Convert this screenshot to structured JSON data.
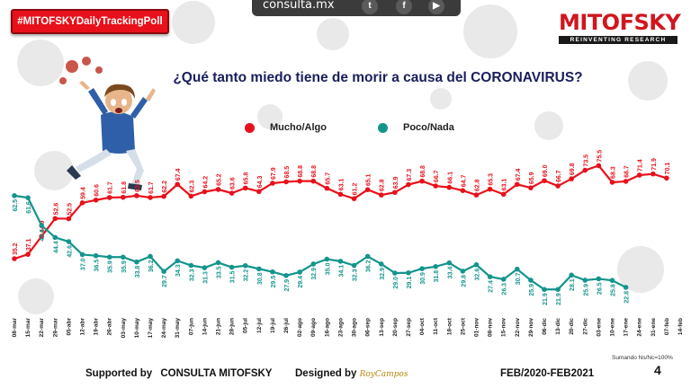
{
  "header": {
    "poll_tag": "#MITOFSKYDailyTrackingPoll",
    "site": "consulta.mx",
    "social": [
      "twitter-icon",
      "facebook-icon",
      "youtube-icon"
    ]
  },
  "logo": {
    "name": "MITOFSKY",
    "tagline": "REINVENTING RESEARCH"
  },
  "footer": {
    "supported_prefix": "Supported by",
    "supporter": "CONSULTA  MITOFSKY",
    "designed_by": "Designed by",
    "signature": "RoyCampos",
    "date_range": "FEB/2020-FEB2021",
    "note": "Sumando Ns/Nc=100%",
    "page": "4"
  },
  "colors": {
    "series1": "#e8101a",
    "series2": "#13958c",
    "title": "#1a1e5c"
  },
  "chart_data": {
    "type": "line",
    "title": "¿Qué tanto miedo tiene de morir a causa del CORONAVIRUS?",
    "xlabel": "",
    "ylabel": "",
    "ylim": [
      15,
      85
    ],
    "grid": false,
    "legend_position": "top-center",
    "categories": [
      "08-mar",
      "15-mar",
      "22-mar",
      "29-mar",
      "05-abr",
      "12-abr",
      "19-abr",
      "26-abr",
      "03-may",
      "10-may",
      "17-may",
      "24-may",
      "31-may",
      "07-jun",
      "14-jun",
      "21-jun",
      "28-jun",
      "05-jul",
      "12-jul",
      "19-jul",
      "26-jul",
      "02-ago",
      "09-ago",
      "16-ago",
      "23-ago",
      "30-ago",
      "06-sep",
      "13-sep",
      "20-sep",
      "27-sep",
      "04-oct",
      "11-oct",
      "18-oct",
      "25-oct",
      "01-nov",
      "08-nov",
      "15-nov",
      "22-nov",
      "29-nov",
      "06-dic",
      "13-dic",
      "20-dic",
      "27-dic",
      "03-ene",
      "10-ene",
      "17-ene",
      "24-ene",
      "31-ene",
      "07-feb",
      "14-feb"
    ],
    "series": [
      {
        "name": "Mucho/Algo",
        "color": "#e8101a",
        "points": [
          {
            "x": 0,
            "y": 35.2
          },
          {
            "x": 1,
            "y": 37.1
          },
          {
            "x": 2,
            "y": 44.9
          },
          {
            "x": 3,
            "y": 52.6
          },
          {
            "x": 4,
            "y": 52.5
          },
          {
            "x": 5,
            "y": 59.4
          },
          {
            "x": 6,
            "y": 60.6
          },
          {
            "x": 7,
            "y": 61.7
          },
          {
            "x": 8,
            "y": 61.8
          },
          {
            "x": 9,
            "y": 62.5
          },
          {
            "x": 10,
            "y": 61.7
          },
          {
            "x": 11,
            "y": 62.2
          },
          {
            "x": 12,
            "y": 67.4
          },
          {
            "x": 13,
            "y": 62.3
          },
          {
            "x": 14,
            "y": 64.2
          },
          {
            "x": 15,
            "y": 65.2
          },
          {
            "x": 16,
            "y": 63.6
          },
          {
            "x": 17,
            "y": 65.8
          },
          {
            "x": 18,
            "y": 64.3
          },
          {
            "x": 19,
            "y": 67.9
          },
          {
            "x": 20,
            "y": 68.5
          },
          {
            "x": 21,
            "y": 68.8
          },
          {
            "x": 22,
            "y": 68.8
          },
          {
            "x": 23,
            "y": 65.7
          },
          {
            "x": 24,
            "y": 63.1
          },
          {
            "x": 25,
            "y": 61.2
          },
          {
            "x": 26,
            "y": 65.1
          },
          {
            "x": 27,
            "y": 62.8
          },
          {
            "x": 28,
            "y": 63.9
          },
          {
            "x": 29,
            "y": 67.3
          },
          {
            "x": 30,
            "y": 68.8
          },
          {
            "x": 31,
            "y": 66.7
          },
          {
            "x": 32,
            "y": 66.1
          },
          {
            "x": 33,
            "y": 64.7
          },
          {
            "x": 34,
            "y": 62.8
          },
          {
            "x": 35,
            "y": 65.3
          },
          {
            "x": 36,
            "y": 63.1
          },
          {
            "x": 37,
            "y": 67.4
          },
          {
            "x": 38,
            "y": 65.9
          },
          {
            "x": 39,
            "y": 69.0
          },
          {
            "x": 40,
            "y": 66.7
          },
          {
            "x": 41,
            "y": 69.8
          },
          {
            "x": 42,
            "y": 73.5
          },
          {
            "x": 43,
            "y": 75.5
          },
          {
            "x": 44,
            "y": 68.3
          },
          {
            "x": 45,
            "y": 68.7
          },
          {
            "x": 46,
            "y": 71.4
          },
          {
            "x": 47,
            "y": 71.9
          },
          {
            "x": 48,
            "y": 70.1
          }
        ]
      },
      {
        "name": "Poco/Nada",
        "color": "#13958c",
        "points": [
          {
            "x": 0,
            "y": 62.5
          },
          {
            "x": 1,
            "y": 61.6
          },
          {
            "x": 2,
            "y": 49.6
          },
          {
            "x": 3,
            "y": 44.4
          },
          {
            "x": 4,
            "y": 42.6
          },
          {
            "x": 5,
            "y": 37.0
          },
          {
            "x": 6,
            "y": 36.5
          },
          {
            "x": 7,
            "y": 35.9
          },
          {
            "x": 8,
            "y": 35.9
          },
          {
            "x": 9,
            "y": 33.8
          },
          {
            "x": 10,
            "y": 36.2
          },
          {
            "x": 11,
            "y": 29.7
          },
          {
            "x": 12,
            "y": 34.3
          },
          {
            "x": 13,
            "y": 32.3
          },
          {
            "x": 14,
            "y": 31.3
          },
          {
            "x": 15,
            "y": 33.5
          },
          {
            "x": 16,
            "y": 31.5
          },
          {
            "x": 17,
            "y": 32.2
          },
          {
            "x": 18,
            "y": 30.8
          },
          {
            "x": 19,
            "y": 29.5
          },
          {
            "x": 20,
            "y": 27.9
          },
          {
            "x": 21,
            "y": 29.4
          },
          {
            "x": 22,
            "y": 32.9
          },
          {
            "x": 23,
            "y": 35.0
          },
          {
            "x": 24,
            "y": 34.1
          },
          {
            "x": 25,
            "y": 32.3
          },
          {
            "x": 26,
            "y": 36.2
          },
          {
            "x": 27,
            "y": 32.9
          },
          {
            "x": 28,
            "y": 29.0
          },
          {
            "x": 29,
            "y": 29.1
          },
          {
            "x": 30,
            "y": 30.9
          },
          {
            "x": 31,
            "y": 31.8
          },
          {
            "x": 32,
            "y": 33.4
          },
          {
            "x": 33,
            "y": 29.8
          },
          {
            "x": 34,
            "y": 32.6
          },
          {
            "x": 35,
            "y": 27.4
          },
          {
            "x": 36,
            "y": 26.3
          },
          {
            "x": 37,
            "y": 30.7
          },
          {
            "x": 38,
            "y": 25.9
          },
          {
            "x": 39,
            "y": 21.9
          },
          {
            "x": 40,
            "y": 21.9
          },
          {
            "x": 41,
            "y": 28.1
          },
          {
            "x": 42,
            "y": 25.9
          },
          {
            "x": 43,
            "y": 26.5
          },
          {
            "x": 44,
            "y": 25.8
          },
          {
            "x": 45,
            "y": 22.8
          }
        ]
      }
    ]
  }
}
